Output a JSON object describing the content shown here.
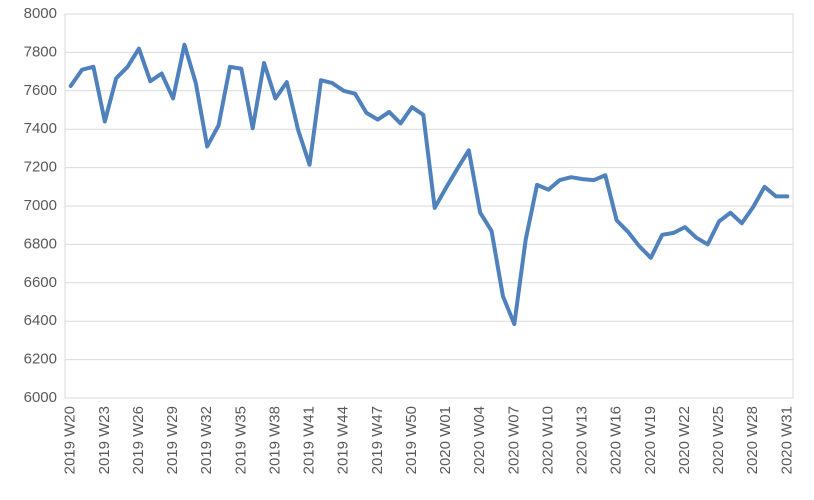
{
  "chart_data": {
    "type": "line",
    "categories": [
      "2019 W20",
      null,
      null,
      "2019 W23",
      null,
      null,
      "2019 W26",
      null,
      null,
      "2019 W29",
      null,
      null,
      "2019 W32",
      null,
      null,
      "2019 W35",
      null,
      null,
      "2019 W38",
      null,
      null,
      "2019 W41",
      null,
      null,
      "2019 W44",
      null,
      null,
      "2019 W47",
      null,
      null,
      "2019 W50",
      null,
      null,
      "2020 W01",
      null,
      null,
      "2020 W04",
      null,
      null,
      "2020 W07",
      null,
      null,
      "2020 W10",
      null,
      null,
      "2020 W13",
      null,
      null,
      "2020 W16",
      null,
      null,
      "2020 W19",
      null,
      null,
      "2020 W22",
      null,
      null,
      "2020 W25",
      null,
      null,
      "2020 W28",
      null,
      null,
      "2020 W31"
    ],
    "values": [
      7625,
      7710,
      7725,
      7440,
      7665,
      7725,
      7820,
      7650,
      7690,
      7560,
      7840,
      7640,
      7310,
      7420,
      7725,
      7715,
      7405,
      7745,
      7560,
      7645,
      7395,
      7215,
      7655,
      7640,
      7600,
      7585,
      7485,
      7450,
      7490,
      7430,
      7515,
      7475,
      6990,
      7095,
      7195,
      7290,
      6965,
      6870,
      6530,
      6385,
      6825,
      7110,
      7085,
      7135,
      7150,
      7140,
      7135,
      7160,
      6925,
      6865,
      6790,
      6730,
      6850,
      6860,
      6890,
      6835,
      6800,
      6920,
      6965,
      6910,
      6995,
      7100,
      7050,
      7050
    ],
    "color": "#4f81bd",
    "ylim": [
      6000,
      8000
    ],
    "yticks": [
      6000,
      6200,
      6400,
      6600,
      6800,
      7000,
      7200,
      7400,
      7600,
      7800,
      8000
    ],
    "grid": true
  }
}
